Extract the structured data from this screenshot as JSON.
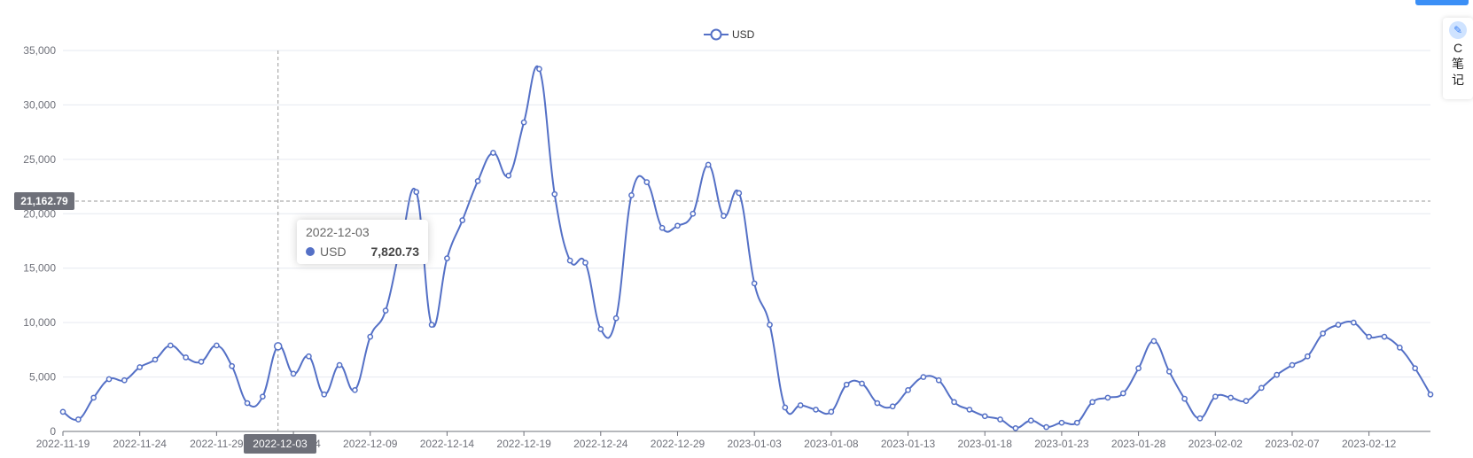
{
  "legend": {
    "label": "USD"
  },
  "colors": {
    "series": "#5470c6",
    "grid": "#e6e9f0",
    "axis": "#6e7079",
    "label_bg": "#6e7079"
  },
  "tooltip": {
    "date": "2022-12-03",
    "series": "USD",
    "value": "7,820.73"
  },
  "crosshair": {
    "x_label": "2022-12-03",
    "y_label": "21,162.79"
  },
  "side_widget": {
    "icon": "note-icon",
    "text": [
      "C",
      "笔",
      "记"
    ]
  },
  "chart_data": {
    "type": "line",
    "title": "",
    "xlabel": "",
    "ylabel": "",
    "ylim": [
      0,
      35000
    ],
    "y_ticks": [
      "0",
      "5,000",
      "10,000",
      "15,000",
      "20,000",
      "25,000",
      "30,000",
      "35,000"
    ],
    "x_tick_labels": [
      "2022-11-19",
      "2022-11-24",
      "2022-11-29",
      "2022-12-04",
      "2022-12-09",
      "2022-12-14",
      "2022-12-19",
      "2022-12-24",
      "2022-12-29",
      "2023-01-03",
      "2023-01-08",
      "2023-01-13",
      "2023-01-18",
      "2023-01-23",
      "2023-01-28",
      "2023-02-02",
      "2023-02-07",
      "2023-02-12"
    ],
    "start_date": "2022-11-19",
    "grid": true,
    "legend_position": "top-center",
    "series": [
      {
        "name": "USD",
        "values": [
          1800,
          1100,
          3100,
          4800,
          4700,
          5900,
          6600,
          7900,
          6800,
          6400,
          7900,
          6000,
          2600,
          3200,
          7820.73,
          5300,
          6900,
          3400,
          6100,
          3800,
          8700,
          11100,
          17200,
          22000,
          9800,
          15900,
          19400,
          23000,
          25600,
          23500,
          28400,
          33300,
          21800,
          15700,
          15500,
          9400,
          10400,
          21700,
          22900,
          18700,
          18900,
          20000,
          24500,
          19800,
          21900,
          13600,
          9800,
          2200,
          2400,
          2000,
          1800,
          4300,
          4400,
          2600,
          2300,
          3800,
          5000,
          4700,
          2700,
          2000,
          1400,
          1100,
          300,
          1000,
          400,
          800,
          800,
          2700,
          3100,
          3500,
          5800,
          8300,
          5500,
          3000,
          1200,
          3200,
          3100,
          2800,
          4000,
          5200,
          6100,
          6900,
          9000,
          9800,
          10000,
          8700,
          8700,
          7700,
          5800,
          3400
        ]
      }
    ]
  }
}
